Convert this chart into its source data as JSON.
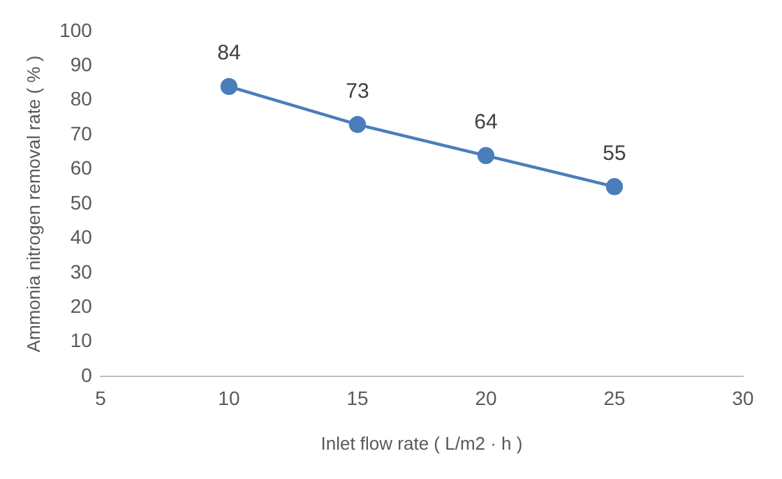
{
  "chart_data": {
    "type": "line",
    "xlabel": "Inlet flow rate ( L/m2 · h )",
    "ylabel": "Ammonia nitrogen removal rate ( % )",
    "x": [
      10,
      15,
      20,
      25
    ],
    "series": [
      {
        "color": "#4a7ebb",
        "values": [
          84,
          73,
          64,
          55
        ]
      }
    ],
    "xlim": [
      5,
      30
    ],
    "xticks": [
      5,
      10,
      15,
      20,
      25,
      30
    ],
    "ylim": [
      0,
      100
    ],
    "yticks": [
      0,
      10,
      20,
      30,
      40,
      50,
      60,
      70,
      80,
      90,
      100
    ],
    "grid": false,
    "legend": false,
    "marker": "circle",
    "line_style": "solid",
    "data_labels": true
  }
}
